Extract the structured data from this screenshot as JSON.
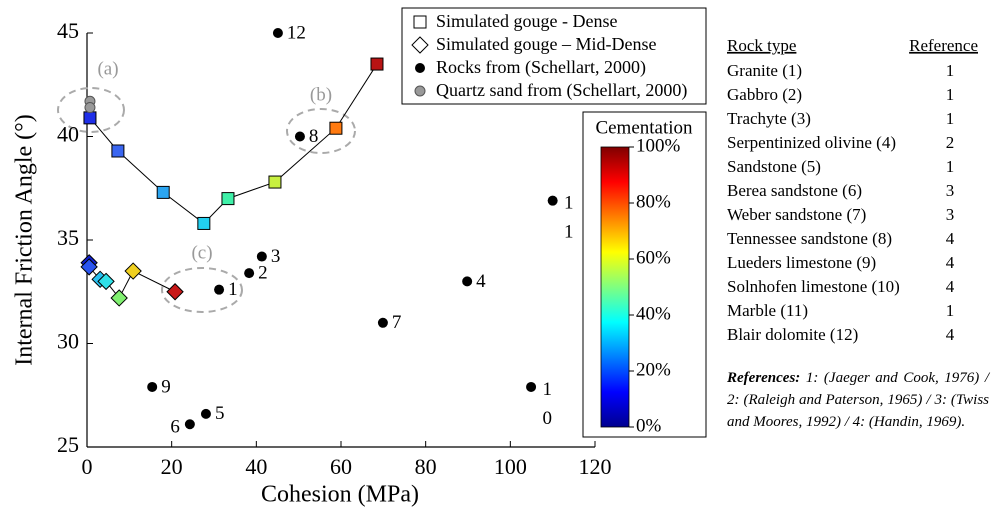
{
  "chart_data": {
    "type": "scatter",
    "xlabel": "Cohesion (MPa)",
    "ylabel": "Internal Friction Angle (°)",
    "xlim": [
      0,
      120
    ],
    "xticks": [
      0,
      20,
      40,
      60,
      80,
      100,
      120
    ],
    "ylim": [
      25,
      45
    ],
    "yticks": [
      25,
      30,
      35,
      40,
      45
    ],
    "series": [
      {
        "name": "Simulated gouge - Dense",
        "marker": "square",
        "line": true,
        "x": [
          0.7,
          7.3,
          18,
          27.6,
          33.3,
          44.4,
          58.8,
          68.5
        ],
        "values": [
          40.9,
          39.3,
          37.3,
          35.8,
          37.0,
          37.8,
          40.4,
          43.5
        ],
        "colors": [
          "#1f2fe8",
          "#3a66f0",
          "#2ba5f0",
          "#22d0f0",
          "#3ff0a8",
          "#c8f040",
          "#ff7a10",
          "#b81414"
        ]
      },
      {
        "name": "Simulated gouge – Mid-Dense",
        "marker": "diamond",
        "line": true,
        "x": [
          0.5,
          0.5,
          3.1,
          4.5,
          7.6,
          10.9,
          20.8
        ],
        "values": [
          33.9,
          33.7,
          33.1,
          33.0,
          32.2,
          33.5,
          32.5
        ],
        "colors": [
          "#1020d0",
          "#2a55f0",
          "#28c0f0",
          "#30e0e8",
          "#80f070",
          "#f0d020",
          "#c81818"
        ]
      },
      {
        "name": "Rocks from (Schellart, 2000)",
        "marker": "circle",
        "color": "#000000",
        "x": [
          45.1,
          50.3,
          41.3,
          38.3,
          110,
          89.8,
          31.2,
          69.9,
          15.4,
          104.9,
          28.1,
          24.3
        ],
        "values": [
          45.0,
          40.0,
          34.2,
          33.4,
          36.9,
          33.0,
          32.6,
          31.0,
          27.9,
          27.9,
          26.6,
          26.1
        ],
        "point_labels": [
          "12",
          "8",
          "3",
          "2",
          "11",
          "4",
          "1",
          "7",
          "9",
          "10",
          "5",
          "6"
        ]
      },
      {
        "name": "Quartz sand from (Schellart, 2000)",
        "marker": "circle",
        "color": "#999999",
        "x": [
          0.7,
          0.7
        ],
        "values": [
          41.7,
          41.4
        ]
      }
    ],
    "annotations": [
      "(a)",
      "(b)",
      "(c)"
    ],
    "colorbar": {
      "title": "Cementation",
      "colormap": "jet",
      "clim": [
        0,
        100
      ],
      "ticks": [
        {
          "value": 0,
          "label": "0%"
        },
        {
          "value": 20,
          "label": "20%"
        },
        {
          "value": 40,
          "label": "40%"
        },
        {
          "value": 60,
          "label": "60%"
        },
        {
          "value": 80,
          "label": "80%"
        },
        {
          "value": 100,
          "label": "100%"
        }
      ]
    }
  },
  "table": {
    "header": [
      "Rock type",
      "Reference"
    ],
    "rows": [
      [
        "Granite (1)",
        "1"
      ],
      [
        "Gabbro (2)",
        "1"
      ],
      [
        "Trachyte (3)",
        "1"
      ],
      [
        "Serpentinized olivine (4)",
        "2"
      ],
      [
        "Sandstone (5)",
        "1"
      ],
      [
        "Berea sandstone (6)",
        "3"
      ],
      [
        "Weber sandstone (7)",
        "3"
      ],
      [
        "Tennessee sandstone (8)",
        "4"
      ],
      [
        "Lueders limestone (9)",
        "4"
      ],
      [
        "Solnhofen limestone (10)",
        "4"
      ],
      [
        "Marble (11)",
        "1"
      ],
      [
        "Blair dolomite (12)",
        "4"
      ]
    ]
  },
  "references": {
    "heading": "References:",
    "text": "1: (Jaeger and Cook, 1976) / 2: (Raleigh and Paterson, 1965) / 3: (Twiss and Moores, 1992) / 4: (Handin, 1969)."
  }
}
